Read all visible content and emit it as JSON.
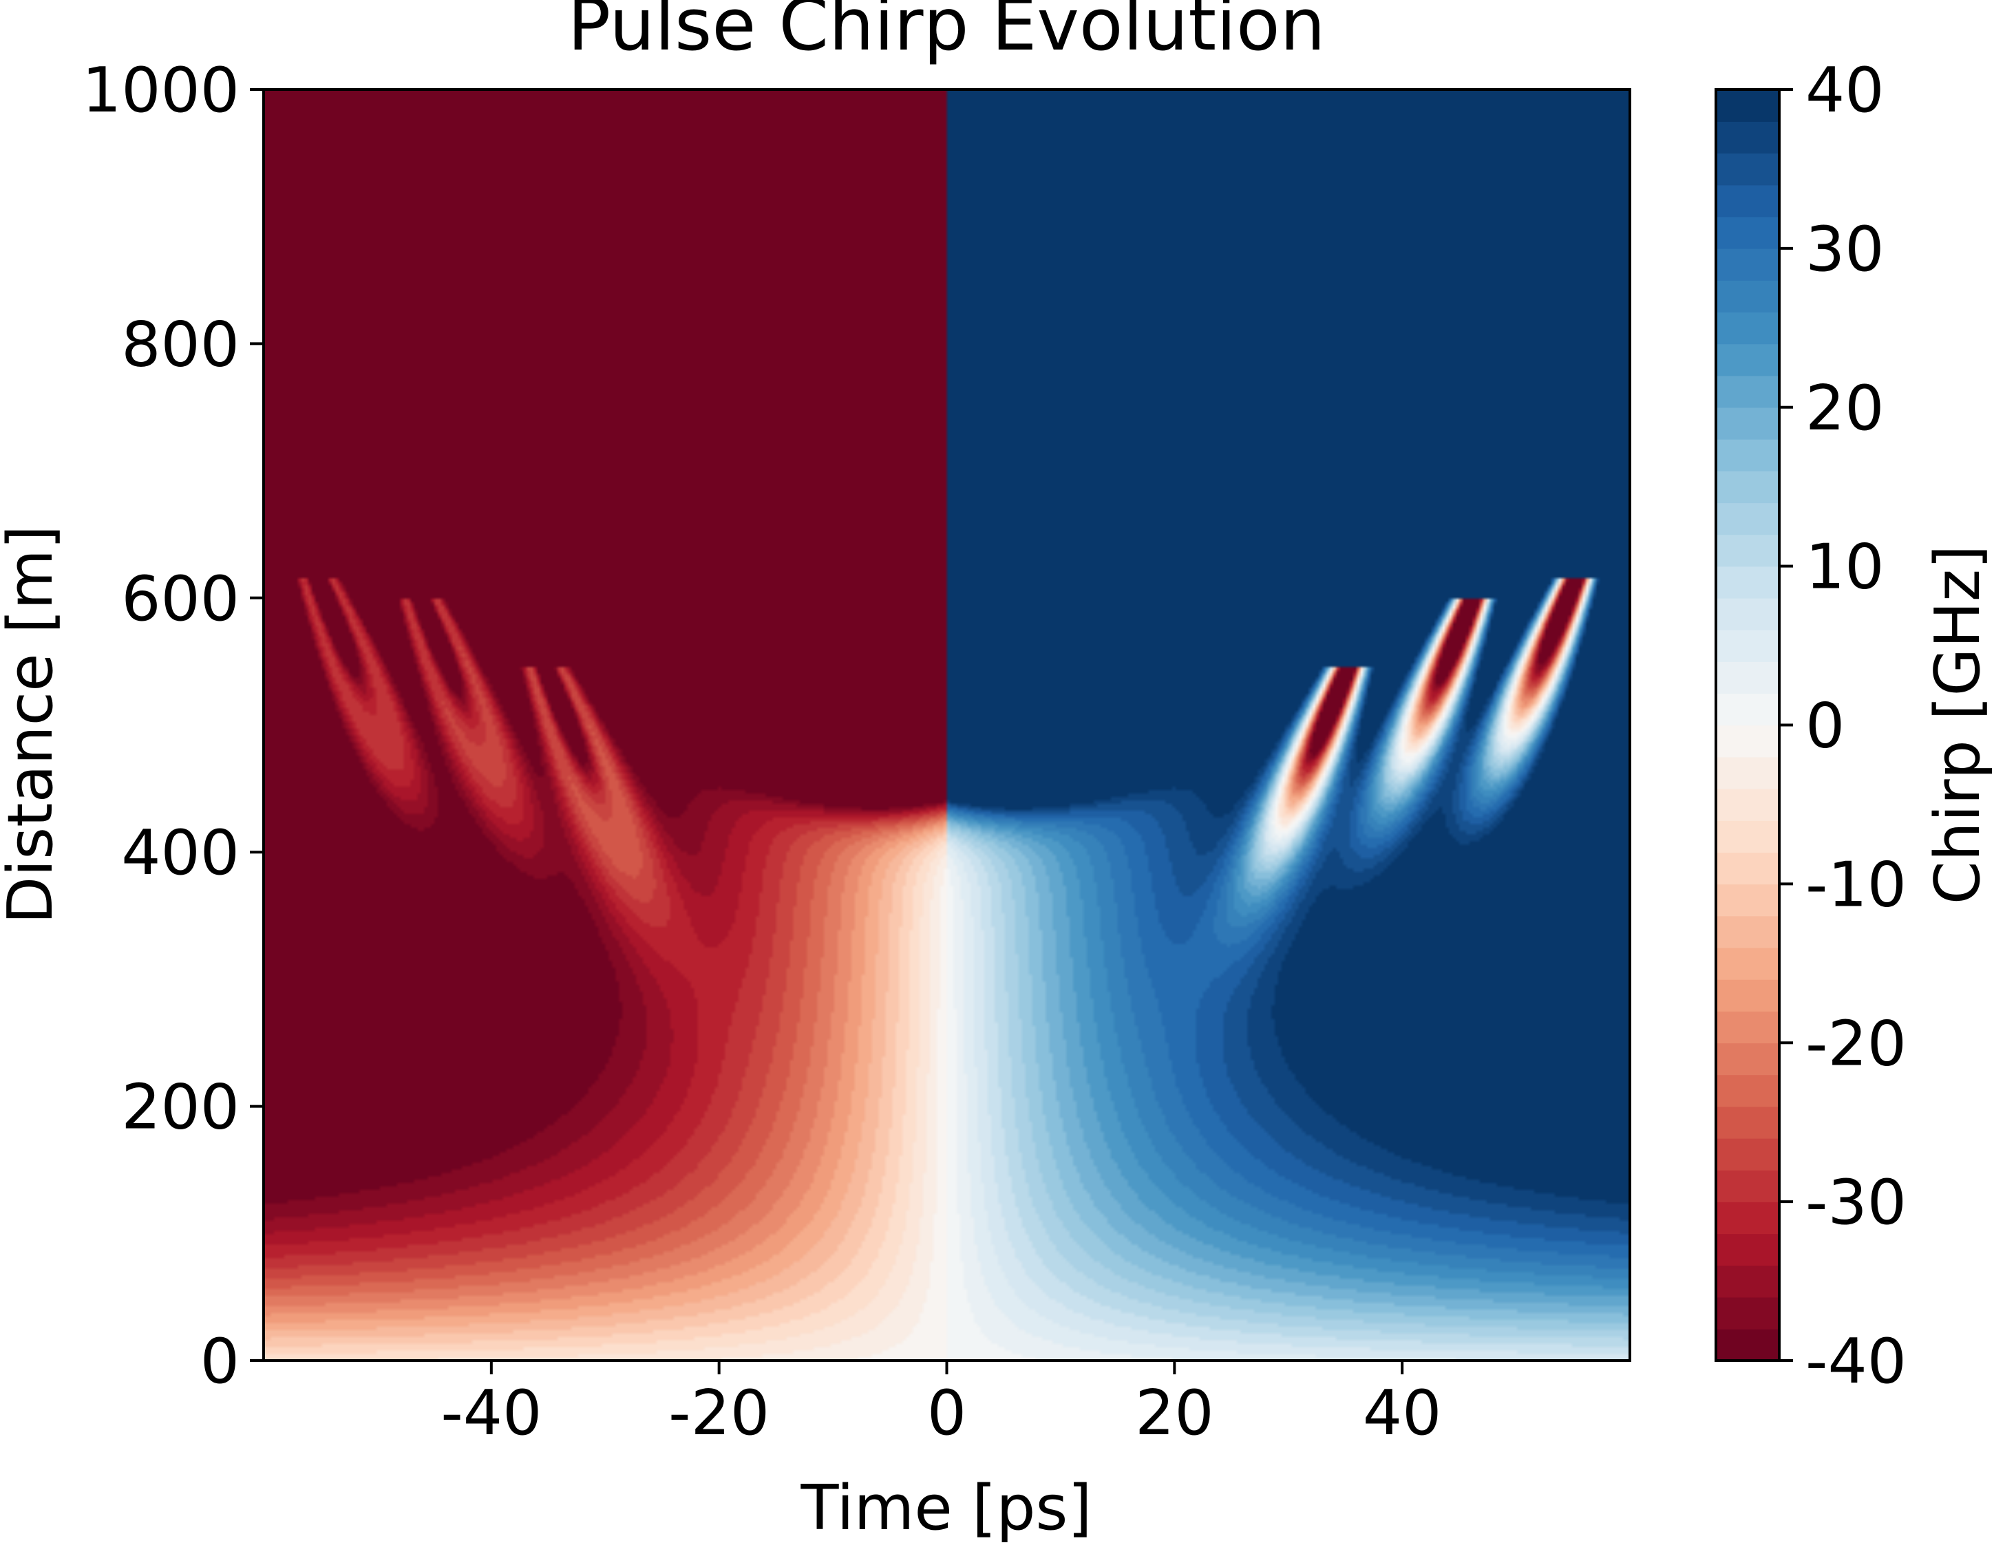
{
  "chart_data": {
    "type": "heatmap",
    "title": "Pulse Chirp Evolution",
    "xlabel": "Time [ps]",
    "ylabel": "Distance [m]",
    "xlim": [
      -60,
      60
    ],
    "ylim": [
      0,
      1000
    ],
    "xticks": [
      -40,
      -20,
      0,
      20,
      40
    ],
    "yticks": [
      0,
      200,
      400,
      600,
      800,
      1000
    ],
    "x_tick_labels": [
      "-40",
      "-20",
      "0",
      "20",
      "40"
    ],
    "y_tick_labels": [
      "0",
      "200",
      "400",
      "600",
      "800",
      "1000"
    ],
    "colorbar": {
      "label": "Chirp [GHz]",
      "range": [
        -40,
        40
      ],
      "ticks": [
        -40,
        -30,
        -20,
        -10,
        0,
        10,
        20,
        30,
        40
      ],
      "tick_labels": [
        "-40",
        "-30",
        "-20",
        "-10",
        "0",
        "10",
        "20",
        "30",
        "40"
      ],
      "levels": 40,
      "colormap": "RdBu",
      "negative_color": "#67001f",
      "zero_color": "#f7f7f7",
      "positive_color": "#053061"
    },
    "grid": false,
    "features": {
      "saturation_boundary_m_at_center": 440,
      "central_zero_chirp_line_ps": 0,
      "side_lobes": [
        {
          "t_ps": -55,
          "tip_m": 610,
          "sign": "positive"
        },
        {
          "t_ps": -46,
          "tip_m": 595,
          "sign": "positive"
        },
        {
          "t_ps": -35,
          "tip_m": 540,
          "sign": "positive"
        },
        {
          "t_ps": 35,
          "tip_m": 540,
          "sign": "negative"
        },
        {
          "t_ps": 46,
          "tip_m": 595,
          "sign": "negative"
        },
        {
          "t_ps": 55,
          "tip_m": 610,
          "sign": "negative"
        }
      ]
    }
  }
}
